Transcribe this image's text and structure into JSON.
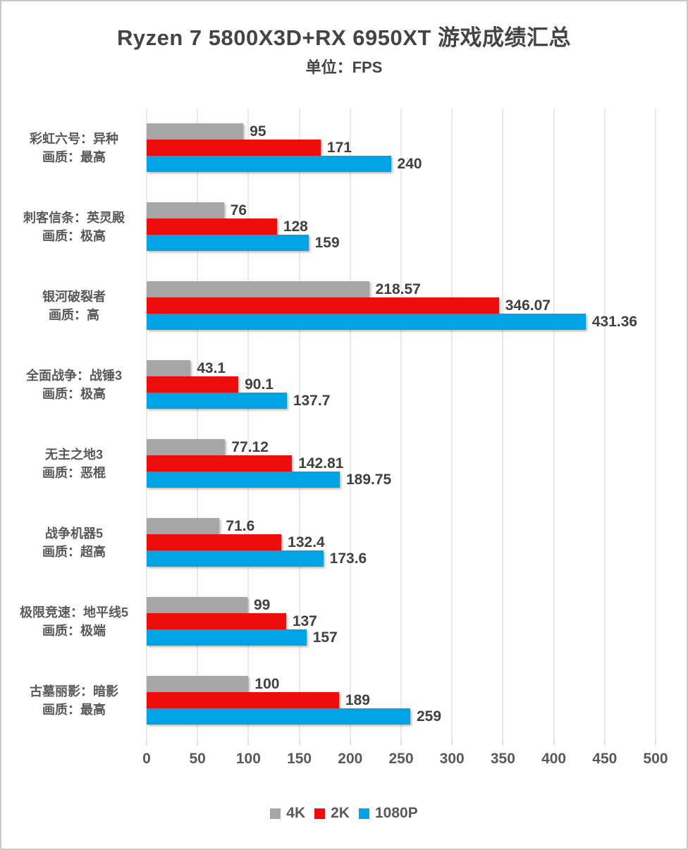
{
  "title": "Ryzen 7 5800X3D+RX 6950XT 游戏成绩汇总",
  "subtitle": "单位：FPS",
  "chart_data": {
    "type": "bar",
    "orientation": "horizontal",
    "title": "Ryzen 7 5800X3D+RX 6950XT 游戏成绩汇总",
    "subtitle": "单位：FPS",
    "unit": "FPS",
    "xlim": [
      0,
      500
    ],
    "xticks": [
      0,
      50,
      100,
      150,
      200,
      250,
      300,
      350,
      400,
      450,
      500
    ],
    "grid": "vertical",
    "legend_position": "bottom",
    "categories": [
      [
        "彩虹六号：异种",
        "画质：最高"
      ],
      [
        "刺客信条：英灵殿",
        "画质：极高"
      ],
      [
        "银河破裂者",
        "画质：高"
      ],
      [
        "全面战争：战锤3",
        "画质：极高"
      ],
      [
        "无主之地3",
        "画质：恶棍"
      ],
      [
        "战争机器5",
        "画质：超高"
      ],
      [
        "极限竞速：地平线5",
        "画质：极端"
      ],
      [
        "古墓丽影：暗影",
        "画质：最高"
      ]
    ],
    "series": [
      {
        "name": "4K",
        "color": "#a6a6a6",
        "values": [
          95,
          76,
          218.57,
          43.1,
          77.12,
          71.6,
          99,
          100
        ]
      },
      {
        "name": "2K",
        "color": "#ee0d0d",
        "values": [
          171,
          128,
          346.07,
          90.1,
          142.81,
          132.4,
          137,
          189
        ]
      },
      {
        "name": "1080P",
        "color": "#00a4e4",
        "values": [
          240,
          159,
          431.36,
          137.7,
          189.75,
          173.6,
          157,
          259
        ]
      }
    ]
  },
  "colors": {
    "gridline": "#d6d6d6",
    "title_text": "#444444",
    "label_text": "#595959",
    "value_text": "#404040"
  }
}
